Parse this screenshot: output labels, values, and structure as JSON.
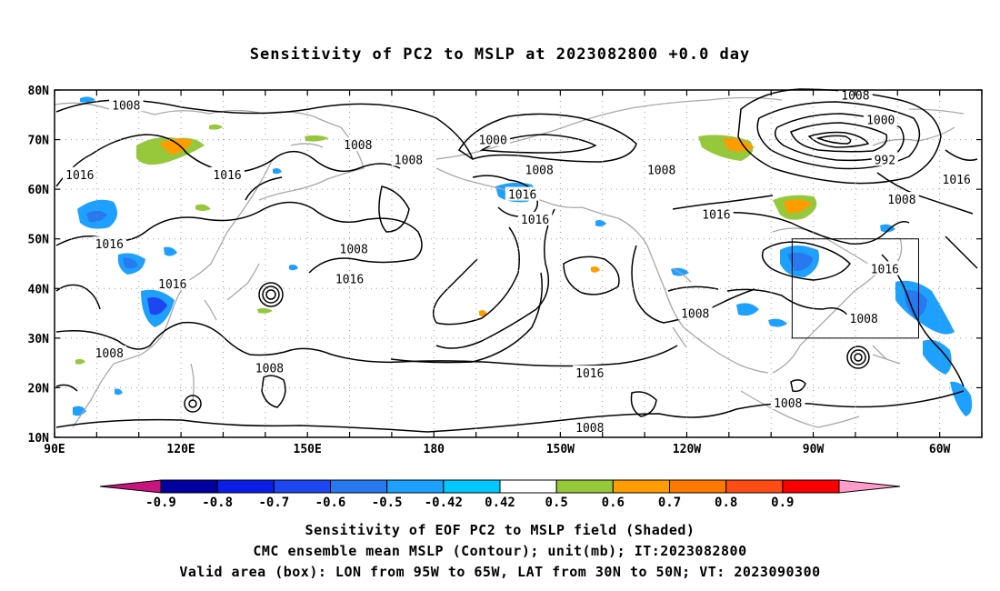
{
  "title": "Sensitivity of PC2 to MSLP at 2023082800 +0.0 day",
  "captions": [
    "Sensitivity of EOF PC2 to MSLP field (Shaded)",
    "CMC ensemble mean MSLP (Contour); unit(mb); IT:2023082800",
    "Valid area (box): LON from 95W to 65W, LAT from 30N to 50N; VT: 2023090300"
  ],
  "map": {
    "lon_range": [
      90,
      310
    ],
    "lat_range": [
      10,
      80
    ],
    "lat_labels": [
      {
        "lat": 80,
        "text": "80N"
      },
      {
        "lat": 70,
        "text": "70N"
      },
      {
        "lat": 60,
        "text": "60N"
      },
      {
        "lat": 50,
        "text": "50N"
      },
      {
        "lat": 40,
        "text": "40N"
      },
      {
        "lat": 30,
        "text": "30N"
      },
      {
        "lat": 20,
        "text": "20N"
      },
      {
        "lat": 10,
        "text": "10N"
      }
    ],
    "lon_labels": [
      {
        "lon": 90,
        "text": "90E"
      },
      {
        "lon": 120,
        "text": "120E"
      },
      {
        "lon": 150,
        "text": "150E"
      },
      {
        "lon": 180,
        "text": "180"
      },
      {
        "lon": 210,
        "text": "150W"
      },
      {
        "lon": 240,
        "text": "120W"
      },
      {
        "lon": 270,
        "text": "90W"
      },
      {
        "lon": 300,
        "text": "60W"
      }
    ],
    "valid_box": {
      "lon": [
        265,
        295
      ],
      "lat": [
        30,
        50
      ]
    },
    "contour_labels": [
      {
        "text": "1008",
        "lon": 107,
        "lat": 77
      },
      {
        "text": "1016",
        "lon": 96,
        "lat": 63
      },
      {
        "text": "1016",
        "lon": 131,
        "lat": 63
      },
      {
        "text": "1008",
        "lon": 162,
        "lat": 69
      },
      {
        "text": "1008",
        "lon": 174,
        "lat": 66
      },
      {
        "text": "1016",
        "lon": 103,
        "lat": 49
      },
      {
        "text": "1016",
        "lon": 118,
        "lat": 41
      },
      {
        "text": "1008",
        "lon": 103,
        "lat": 27
      },
      {
        "text": "1008",
        "lon": 141,
        "lat": 24
      },
      {
        "text": "1008",
        "lon": 161,
        "lat": 48
      },
      {
        "text": "1016",
        "lon": 160,
        "lat": 42
      },
      {
        "text": "1000",
        "lon": 194,
        "lat": 70
      },
      {
        "text": "1008",
        "lon": 205,
        "lat": 64
      },
      {
        "text": "1016",
        "lon": 201,
        "lat": 59
      },
      {
        "text": "1016",
        "lon": 204,
        "lat": 54
      },
      {
        "text": "1008",
        "lon": 234,
        "lat": 64
      },
      {
        "text": "1016",
        "lon": 247,
        "lat": 55
      },
      {
        "text": "1008",
        "lon": 280,
        "lat": 79
      },
      {
        "text": "1000",
        "lon": 286,
        "lat": 74
      },
      {
        "text": "992",
        "lon": 287,
        "lat": 66
      },
      {
        "text": "1008",
        "lon": 291,
        "lat": 58
      },
      {
        "text": "1016",
        "lon": 304,
        "lat": 62
      },
      {
        "text": "1016",
        "lon": 287,
        "lat": 44
      },
      {
        "text": "1008",
        "lon": 282,
        "lat": 34
      },
      {
        "text": "1008",
        "lon": 242,
        "lat": 35
      },
      {
        "text": "1016",
        "lon": 217,
        "lat": 23
      },
      {
        "text": "1008",
        "lon": 217,
        "lat": 12
      },
      {
        "text": "1008",
        "lon": 264,
        "lat": 17
      }
    ]
  },
  "colorbar": {
    "ticks": [
      "-0.9",
      "-0.8",
      "-0.7",
      "-0.6",
      "-0.5",
      "-0.42",
      "0.42",
      "0.5",
      "0.6",
      "0.7",
      "0.8",
      "0.9"
    ],
    "colors": [
      "#c8147f",
      "#0000a0",
      "#0a1ee6",
      "#1e46f0",
      "#2878f0",
      "#1ea0ff",
      "#00c8ff",
      "#ffffff",
      "#96c83c",
      "#ff9c00",
      "#ff7800",
      "#ff4b14",
      "#fa0000",
      "#ff9ccc"
    ]
  }
}
